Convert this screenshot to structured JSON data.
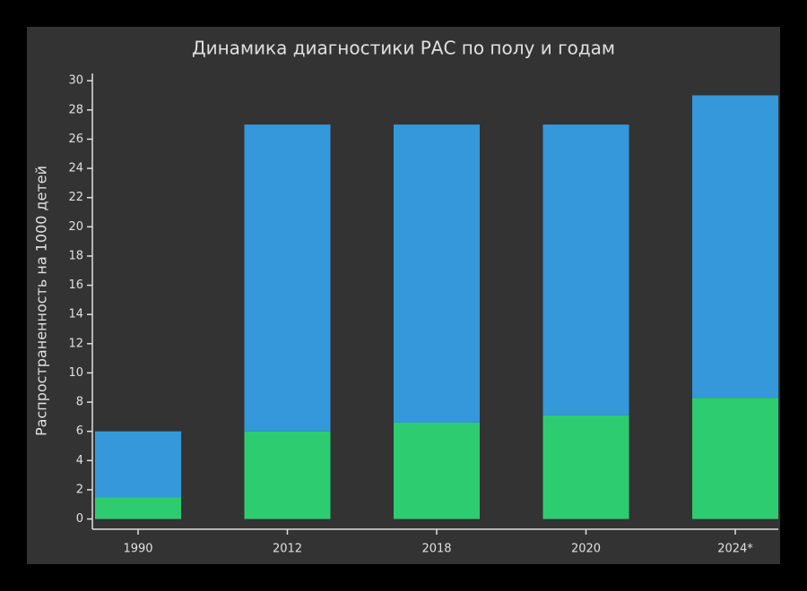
{
  "chart_data": {
    "type": "stacked-bar",
    "title": "Динамика диагностики РАС по полу и годам",
    "y_label": "Распространенность на 1000 детей",
    "categories": [
      "1990",
      "2012",
      "2018",
      "2020",
      "2024*"
    ],
    "series": [
      {
        "color": "#2ecc71",
        "values": [
          1.5,
          6,
          6.6,
          7.1,
          8.3
        ]
      },
      {
        "color": "#3498db",
        "values": [
          4.5,
          21,
          20.4,
          19.9,
          20.7
        ]
      }
    ],
    "ylim": [
      -0.7,
      30.5
    ],
    "yticks": [
      0,
      2,
      4,
      6,
      8,
      10,
      12,
      14,
      16,
      18,
      20,
      22,
      24,
      26,
      28,
      30
    ]
  }
}
